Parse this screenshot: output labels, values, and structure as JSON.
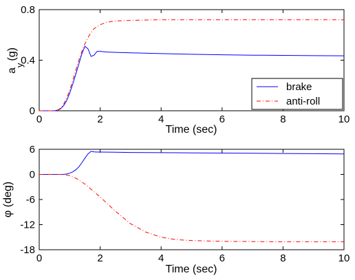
{
  "chart_data": [
    {
      "type": "line",
      "xlabel": "Time (sec)",
      "ylabel": "a_y (g)",
      "ylabel_main": "a",
      "ylabel_sub": "y",
      "ylabel_unit": "(g)",
      "xlim": [
        0,
        10
      ],
      "ylim": [
        0,
        0.8
      ],
      "xticks": [
        0,
        2,
        4,
        6,
        8,
        10
      ],
      "xtick_labels": [
        "0",
        "2",
        "4",
        "6",
        "8",
        "10"
      ],
      "yticks": [
        0,
        0.4,
        0.8
      ],
      "ytick_labels": [
        "0",
        "0.4",
        "0.8"
      ],
      "legend": {
        "position": "bottom-right",
        "entries": [
          "brake",
          "anti-roll"
        ]
      },
      "series": [
        {
          "name": "brake",
          "color": "#0000ff",
          "style": "solid",
          "x": [
            0,
            0.5,
            0.6,
            0.7,
            0.8,
            0.9,
            1.0,
            1.1,
            1.2,
            1.3,
            1.4,
            1.5,
            1.6,
            1.7,
            1.8,
            1.9,
            2.0,
            2.2,
            2.5,
            3,
            4,
            5,
            6,
            7,
            8,
            9,
            10
          ],
          "y": [
            0,
            0,
            0.005,
            0.015,
            0.04,
            0.08,
            0.14,
            0.21,
            0.29,
            0.37,
            0.45,
            0.51,
            0.49,
            0.43,
            0.44,
            0.47,
            0.47,
            0.465,
            0.462,
            0.458,
            0.452,
            0.447,
            0.443,
            0.44,
            0.438,
            0.436,
            0.435
          ]
        },
        {
          "name": "anti-roll",
          "color": "#ff0000",
          "style": "dashdot",
          "x": [
            0,
            0.5,
            0.6,
            0.7,
            0.8,
            0.9,
            1.0,
            1.1,
            1.2,
            1.3,
            1.4,
            1.5,
            1.6,
            1.7,
            1.8,
            2.0,
            2.2,
            2.5,
            3,
            3.5,
            4,
            5,
            6,
            7,
            8,
            9,
            10
          ],
          "y": [
            0,
            0,
            0.005,
            0.02,
            0.05,
            0.1,
            0.16,
            0.24,
            0.32,
            0.4,
            0.47,
            0.53,
            0.58,
            0.62,
            0.65,
            0.68,
            0.7,
            0.71,
            0.715,
            0.718,
            0.72,
            0.72,
            0.72,
            0.72,
            0.72,
            0.72,
            0.72
          ]
        }
      ]
    },
    {
      "type": "line",
      "xlabel": "Time (sec)",
      "ylabel": "φ (deg)",
      "xlim": [
        0,
        10
      ],
      "ylim": [
        -18,
        6
      ],
      "xticks": [
        0,
        2,
        4,
        6,
        8,
        10
      ],
      "xtick_labels": [
        "0",
        "2",
        "4",
        "6",
        "8",
        "10"
      ],
      "yticks": [
        -18,
        -12,
        -6,
        0,
        6
      ],
      "ytick_labels": [
        "-18",
        "-12",
        "-6",
        "0",
        "6"
      ],
      "series": [
        {
          "color": "#0000ff",
          "style": "solid",
          "x": [
            0,
            0.8,
            0.9,
            1.0,
            1.1,
            1.2,
            1.3,
            1.4,
            1.5,
            1.6,
            1.7,
            1.8,
            1.9,
            2.0,
            2.5,
            3,
            4,
            5,
            6,
            7,
            8,
            9,
            10
          ],
          "y": [
            0,
            0,
            0.1,
            0.3,
            0.6,
            1.1,
            1.8,
            2.8,
            3.9,
            4.9,
            5.5,
            5.4,
            5.35,
            5.35,
            5.3,
            5.25,
            5.2,
            5.15,
            5.1,
            5.05,
            5.0,
            4.95,
            4.9
          ]
        },
        {
          "color": "#ff0000",
          "style": "dashdot",
          "x": [
            0,
            0.8,
            1.0,
            1.2,
            1.5,
            2.0,
            2.5,
            3.0,
            3.5,
            4.0,
            4.5,
            5.0,
            6,
            7,
            8,
            9,
            10
          ],
          "y": [
            0,
            0,
            -0.3,
            -0.9,
            -2.3,
            -5.4,
            -8.8,
            -11.8,
            -13.8,
            -15.0,
            -15.6,
            -15.8,
            -16.0,
            -16.05,
            -16.1,
            -16.1,
            -16.1
          ]
        }
      ]
    }
  ]
}
